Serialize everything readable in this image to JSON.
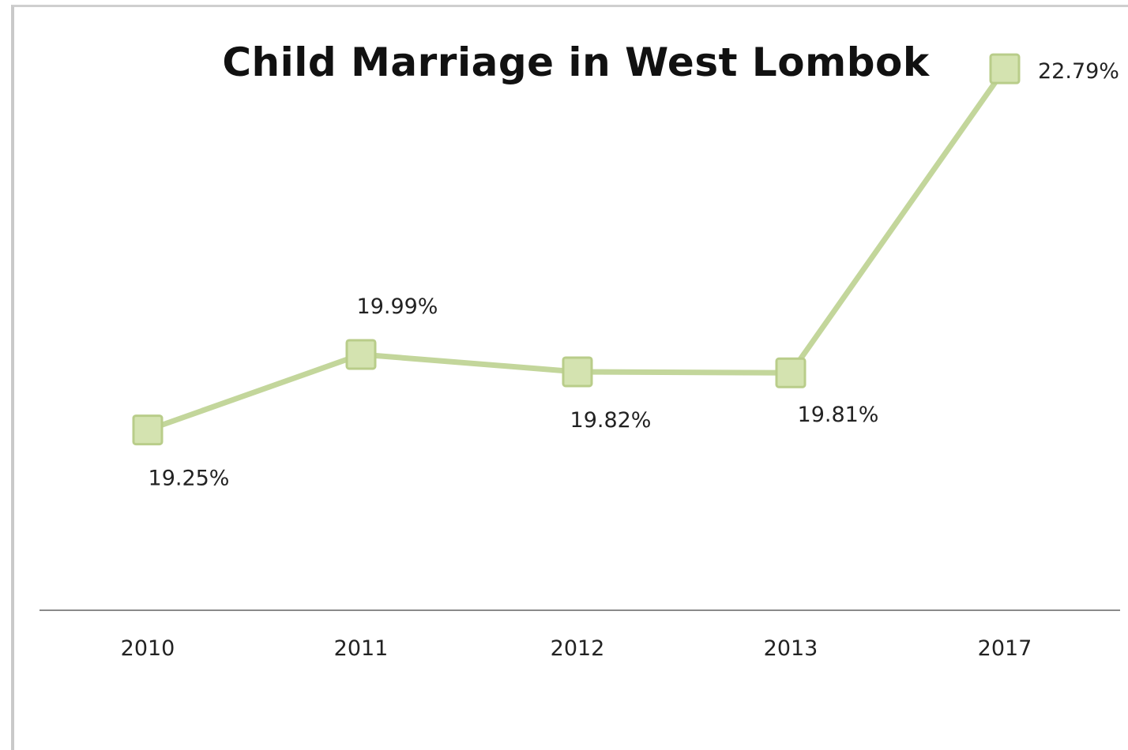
{
  "chart_data": {
    "type": "line",
    "title": "Child Marriage in West Lombok",
    "xlabel": "",
    "ylabel": "",
    "categories": [
      "2010",
      "2011",
      "2012",
      "2013",
      "2017"
    ],
    "series": [
      {
        "values": [
          19.25,
          19.99,
          19.82,
          19.81,
          22.79
        ],
        "data_labels": [
          "19.25%",
          "19.99%",
          "19.82%",
          "19.81%",
          "22.79%"
        ],
        "color": "#c3d69b",
        "marker": "square"
      }
    ],
    "ylim": [
      16.5,
      23.0
    ],
    "grid": false,
    "legend": "none",
    "y_axis_visible": false
  }
}
